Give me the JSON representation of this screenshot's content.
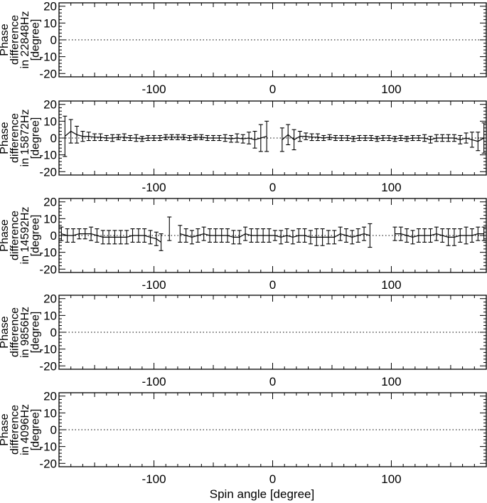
{
  "chart_data": [
    {
      "type": "line",
      "ylabel_lines": [
        "Phase",
        "difference",
        "in 22848Hz",
        "[degree]"
      ],
      "xlim": [
        -180,
        180
      ],
      "ylim": [
        -22,
        22
      ],
      "xticks": [
        -100,
        0,
        100
      ],
      "yticks": [
        -20,
        -10,
        0,
        10,
        20
      ],
      "reference_line": {
        "y": 0,
        "style": "dotted"
      },
      "series": []
    },
    {
      "type": "line",
      "ylabel_lines": [
        "Phase",
        "difference",
        "in 15872Hz",
        "[degree]"
      ],
      "xlim": [
        -180,
        180
      ],
      "ylim": [
        -22,
        22
      ],
      "xticks": [
        -100,
        0,
        100
      ],
      "yticks": [
        -20,
        -10,
        0,
        10,
        20
      ],
      "reference_line": {
        "y": 0,
        "style": "dotted"
      },
      "series": [
        {
          "segments": [
            [
              [
                -175,
                1,
                12
              ],
              [
                -170,
                4,
                7
              ],
              [
                -165,
                2,
                5
              ],
              [
                -160,
                1,
                3
              ],
              [
                -155,
                1,
                2.5
              ],
              [
                -150,
                0.5,
                2
              ],
              [
                -145,
                0.5,
                2
              ],
              [
                -140,
                0,
                1.5
              ],
              [
                -135,
                0,
                2
              ],
              [
                -130,
                0.5,
                1.5
              ],
              [
                -125,
                0.5,
                2
              ],
              [
                -120,
                0,
                1.5
              ],
              [
                -115,
                0,
                2
              ],
              [
                -110,
                -0.5,
                1.5
              ],
              [
                -105,
                0,
                1.5
              ],
              [
                -100,
                0,
                1.5
              ],
              [
                -95,
                0,
                1.5
              ],
              [
                -90,
                0.5,
                1.5
              ],
              [
                -85,
                0.5,
                1.5
              ],
              [
                -80,
                0.5,
                1.5
              ],
              [
                -75,
                0.5,
                1.5
              ],
              [
                -70,
                0,
                1.5
              ],
              [
                -65,
                0.5,
                1.5
              ],
              [
                -60,
                0.5,
                1.5
              ],
              [
                -55,
                0,
                1.5
              ],
              [
                -50,
                0,
                1.5
              ],
              [
                -45,
                0,
                1.5
              ],
              [
                -40,
                0,
                2
              ],
              [
                -35,
                -0.5,
                2
              ],
              [
                -30,
                0,
                2.5
              ],
              [
                -25,
                -0.5,
                2.5
              ],
              [
                -20,
                0,
                3.5
              ],
              [
                -15,
                -1,
                5
              ],
              [
                -10,
                0,
                8
              ],
              [
                -5,
                1,
                9
              ]
            ],
            [
              [
                8,
                -1,
                7
              ],
              [
                13,
                2,
                6
              ],
              [
                18,
                -1,
                6
              ],
              [
                23,
                1,
                3
              ],
              [
                28,
                1,
                2
              ],
              [
                33,
                0.5,
                2
              ],
              [
                38,
                0.5,
                2
              ],
              [
                43,
                0,
                1.5
              ],
              [
                48,
                0.5,
                1.5
              ],
              [
                53,
                0,
                1.5
              ],
              [
                58,
                0,
                1.5
              ],
              [
                63,
                0,
                1.5
              ],
              [
                68,
                -0.5,
                1.5
              ],
              [
                73,
                0,
                1.5
              ],
              [
                78,
                0,
                1.5
              ],
              [
                83,
                0,
                1.5
              ],
              [
                88,
                -0.5,
                1.5
              ],
              [
                93,
                0,
                1.5
              ],
              [
                98,
                0,
                1.5
              ],
              [
                103,
                -0.5,
                1.5
              ],
              [
                108,
                0,
                1.5
              ],
              [
                113,
                -0.5,
                1.5
              ],
              [
                118,
                0,
                1.5
              ],
              [
                123,
                0,
                1.5
              ],
              [
                128,
                0,
                2
              ],
              [
                133,
                -1,
                2
              ],
              [
                138,
                0,
                2
              ],
              [
                143,
                0,
                2
              ],
              [
                148,
                0,
                2
              ],
              [
                153,
                0,
                2
              ],
              [
                158,
                -1,
                2.5
              ],
              [
                163,
                0,
                3
              ],
              [
                168,
                -1,
                4.5
              ],
              [
                173,
                -2,
                5.5
              ],
              [
                178,
                0,
                9
              ]
            ]
          ]
        }
      ]
    },
    {
      "type": "line",
      "ylabel_lines": [
        "Phase",
        "difference",
        "in 14592Hz",
        "[degree]"
      ],
      "xlim": [
        -180,
        180
      ],
      "ylim": [
        -22,
        22
      ],
      "xticks": [
        -100,
        0,
        100
      ],
      "yticks": [
        -20,
        -10,
        0,
        10,
        20
      ],
      "reference_line": {
        "y": 0,
        "style": "dotted"
      },
      "series": [
        {
          "segments": [
            [
              [
                -178,
                1,
                4
              ],
              [
                -173,
                0,
                4
              ],
              [
                -168,
                0,
                4
              ],
              [
                -163,
                1,
                3
              ],
              [
                -158,
                1,
                3
              ],
              [
                -153,
                1,
                4
              ],
              [
                -148,
                0,
                4
              ],
              [
                -143,
                -1,
                4
              ],
              [
                -138,
                -1,
                4
              ],
              [
                -133,
                -1,
                4
              ],
              [
                -128,
                -1,
                4
              ],
              [
                -123,
                -1,
                4
              ],
              [
                -118,
                0,
                4
              ],
              [
                -113,
                0,
                4
              ],
              [
                -108,
                0,
                4
              ],
              [
                -103,
                -1,
                4
              ],
              [
                -98,
                -2,
                4
              ],
              [
                -94,
                -4,
                5
              ]
            ],
            [
              [
                -87,
                4,
                7
              ]
            ],
            [
              [
                -78,
                1,
                5
              ],
              [
                -73,
                0,
                4
              ],
              [
                -68,
                -1,
                4
              ],
              [
                -63,
                0,
                4
              ],
              [
                -58,
                1,
                4
              ],
              [
                -53,
                0,
                4
              ],
              [
                -48,
                0,
                4
              ],
              [
                -43,
                0,
                4
              ],
              [
                -38,
                0,
                4
              ],
              [
                -33,
                -1,
                4
              ],
              [
                -28,
                -1,
                4
              ],
              [
                -23,
                1,
                4
              ],
              [
                -18,
                0,
                4
              ],
              [
                -13,
                0,
                4
              ],
              [
                -8,
                0,
                4
              ],
              [
                -3,
                0,
                4
              ],
              [
                2,
                0,
                3
              ],
              [
                7,
                -1,
                4
              ],
              [
                12,
                0,
                4
              ],
              [
                17,
                -1,
                4
              ],
              [
                22,
                0,
                4
              ],
              [
                27,
                0,
                4
              ],
              [
                32,
                -1,
                4
              ],
              [
                37,
                -1,
                5
              ],
              [
                42,
                -1,
                5
              ],
              [
                47,
                -1,
                4
              ],
              [
                52,
                -1,
                4
              ],
              [
                57,
                1,
                4
              ],
              [
                62,
                0,
                4
              ],
              [
                67,
                -1,
                4
              ],
              [
                72,
                0,
                4
              ],
              [
                77,
                1,
                4
              ],
              [
                82,
                0,
                7
              ]
            ],
            [
              [
                103,
                1,
                4
              ],
              [
                108,
                1,
                4
              ],
              [
                113,
                0,
                4
              ],
              [
                118,
                -1,
                4
              ],
              [
                123,
                0,
                4
              ],
              [
                128,
                0,
                4
              ],
              [
                133,
                0,
                4
              ],
              [
                138,
                1,
                4
              ],
              [
                143,
                0,
                4
              ],
              [
                148,
                -1,
                5
              ],
              [
                153,
                -1,
                5
              ],
              [
                158,
                0,
                4
              ],
              [
                163,
                0,
                5
              ],
              [
                168,
                0,
                4
              ],
              [
                173,
                1,
                4
              ],
              [
                178,
                1,
                4
              ]
            ]
          ]
        }
      ]
    },
    {
      "type": "line",
      "ylabel_lines": [
        "Phase",
        "difference",
        "in 9856Hz",
        "[degree]"
      ],
      "xlim": [
        -180,
        180
      ],
      "ylim": [
        -22,
        22
      ],
      "xticks": [
        -100,
        0,
        100
      ],
      "yticks": [
        -20,
        -10,
        0,
        10,
        20
      ],
      "reference_line": {
        "y": 0,
        "style": "dotted"
      },
      "series": []
    },
    {
      "type": "line",
      "ylabel_lines": [
        "Phase",
        "difference",
        "in 4096Hz",
        "[degree]"
      ],
      "xlim": [
        -180,
        180
      ],
      "ylim": [
        -22,
        22
      ],
      "xticks": [
        -100,
        0,
        100
      ],
      "yticks": [
        -20,
        -10,
        0,
        10,
        20
      ],
      "reference_line": {
        "y": 0,
        "style": "dotted"
      },
      "series": [],
      "xlabel": "Spin angle [degree]"
    }
  ]
}
